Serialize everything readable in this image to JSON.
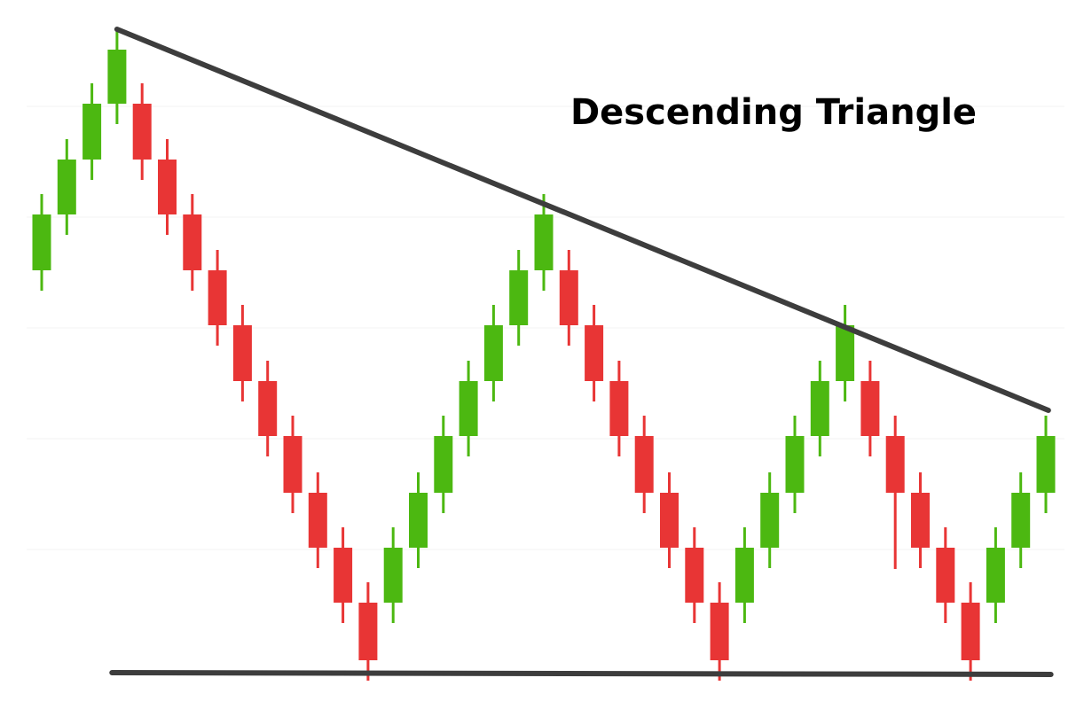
{
  "chart_data": {
    "type": "candlestick",
    "title": "Descending Triangle",
    "ylim": [
      0,
      800
    ],
    "up_color": "#4cb811",
    "down_color": "#e83535",
    "line_color": "#3d3d3d",
    "open": [
      495,
      558,
      620,
      683,
      683,
      620,
      558,
      495,
      433,
      370,
      308,
      244,
      182,
      120,
      120,
      182,
      244,
      308,
      370,
      433,
      495,
      495,
      433,
      370,
      308,
      244,
      182,
      120,
      120,
      182,
      244,
      308,
      370,
      370,
      308,
      244,
      182,
      120,
      120,
      182,
      244
    ],
    "high": [
      581,
      643,
      706,
      767,
      706,
      643,
      581,
      518,
      456,
      393,
      331,
      267,
      205,
      143,
      205,
      267,
      331,
      393,
      456,
      518,
      581,
      518,
      456,
      393,
      331,
      267,
      205,
      143,
      205,
      267,
      331,
      393,
      456,
      393,
      331,
      267,
      205,
      143,
      205,
      267,
      331
    ],
    "low": [
      472,
      535,
      597,
      660,
      597,
      535,
      472,
      410,
      347,
      285,
      221,
      159,
      97,
      32,
      97,
      159,
      221,
      285,
      347,
      410,
      472,
      410,
      347,
      285,
      221,
      159,
      97,
      32,
      97,
      159,
      221,
      285,
      347,
      285,
      158,
      159,
      97,
      32,
      97,
      159,
      221
    ],
    "close": [
      558,
      620,
      683,
      744,
      620,
      558,
      495,
      433,
      370,
      308,
      244,
      182,
      120,
      55,
      182,
      244,
      308,
      370,
      433,
      495,
      558,
      433,
      370,
      308,
      244,
      182,
      120,
      55,
      182,
      244,
      308,
      370,
      433,
      308,
      244,
      182,
      120,
      55,
      182,
      244,
      308
    ],
    "trendlines": [
      {
        "x": [
          3,
          40.1
        ],
        "y": [
          767,
          337
        ]
      },
      {
        "x": [
          2.8,
          40.2
        ],
        "y": [
          41,
          39
        ]
      }
    ]
  }
}
